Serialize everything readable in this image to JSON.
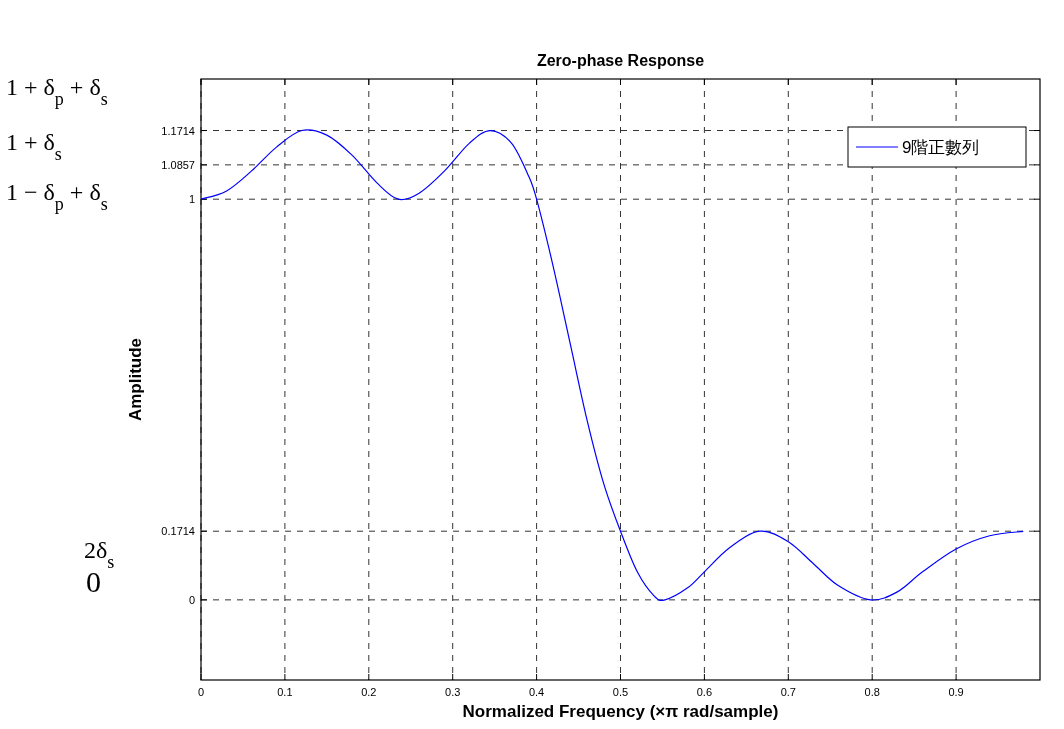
{
  "chart_data": {
    "type": "line",
    "title": "Zero-phase Response",
    "xlabel": "Normalized Frequency (×π rad/sample)",
    "ylabel": "Amplitude",
    "annotations": [
      "1 + δ$_{p}$ + δ$_{s}$",
      "1 + δ$_{s}$",
      "1 − δ$_{p}$ + δ$_{s}$",
      "2δ$_{s}$",
      "0"
    ],
    "x": [
      0,
      0.03,
      0.06,
      0.09,
      0.12,
      0.15,
      0.18,
      0.21,
      0.235,
      0.26,
      0.29,
      0.32,
      0.345,
      0.37,
      0.39,
      0.4,
      0.42,
      0.44,
      0.46,
      0.48,
      0.5,
      0.52,
      0.54,
      0.553,
      0.58,
      0.6,
      0.63,
      0.666,
      0.7,
      0.73,
      0.76,
      0.798,
      0.83,
      0.86,
      0.9,
      0.94,
      0.98
    ],
    "series": [
      {
        "name": "9階正數列",
        "color": "#0000ff",
        "values": [
          1,
          1.02,
          1.07,
          1.13,
          1.1714,
          1.16,
          1.11,
          1.04,
          1,
          1.015,
          1.07,
          1.14,
          1.1714,
          1.14,
          1.06,
          1.0,
          0.83,
          0.64,
          0.45,
          0.29,
          0.1714,
          0.07,
          0.01,
          0,
          0.03,
          0.07,
          0.13,
          0.1714,
          0.145,
          0.09,
          0.035,
          0,
          0.02,
          0.07,
          0.127,
          0.16,
          0.171
        ]
      }
    ],
    "xlim": [
      0,
      1
    ],
    "ylim": [
      -0.2,
      1.3
    ],
    "xticks": [
      0,
      0.1,
      0.2,
      0.3,
      0.4,
      0.5,
      0.6,
      0.7,
      0.8,
      0.9
    ],
    "yticks": [
      0,
      0.1714,
      1,
      1.0857,
      1.1714
    ],
    "grid": true,
    "legend": "top right",
    "line_style": "solid",
    "marker": "none"
  }
}
